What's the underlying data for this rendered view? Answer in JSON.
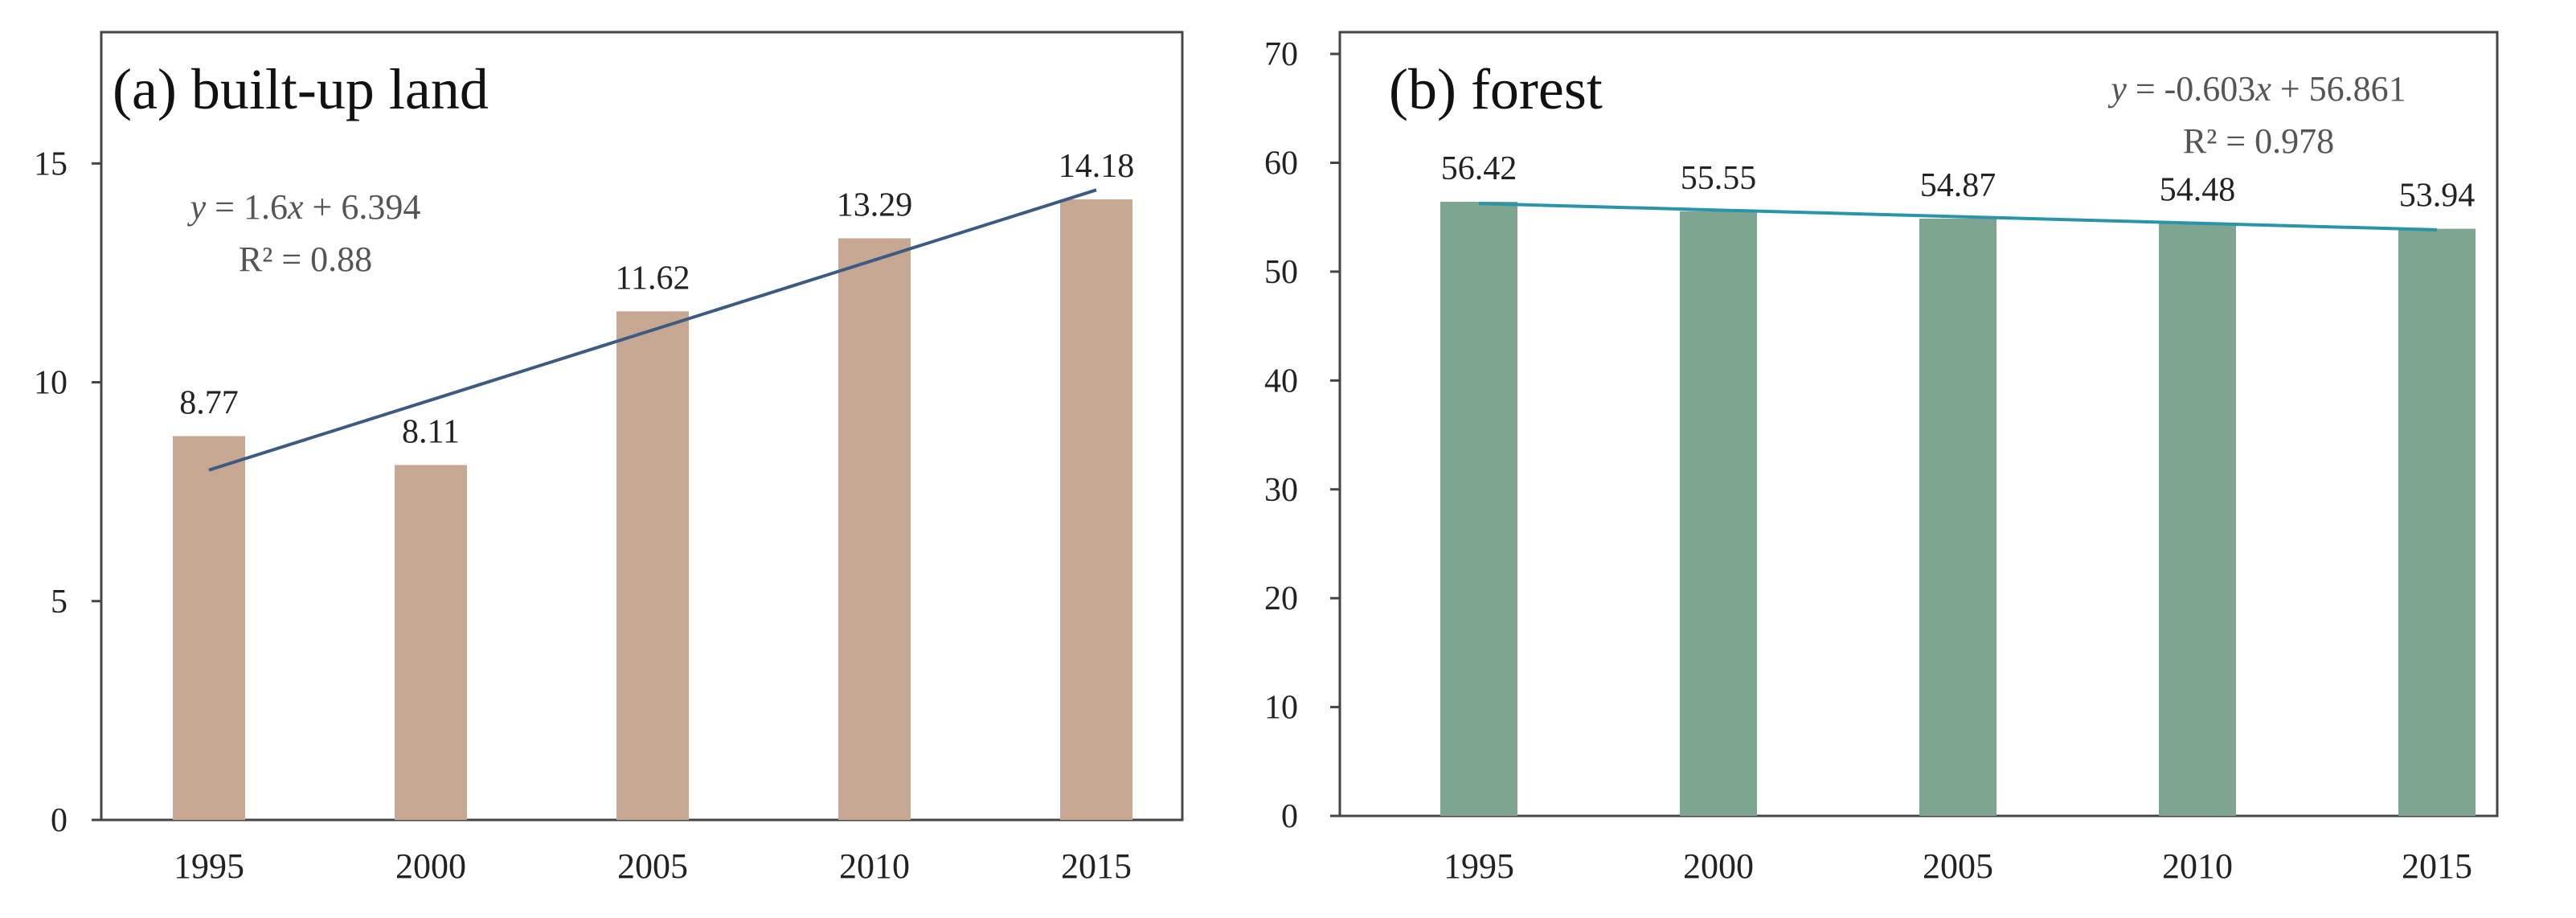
{
  "chart_data": [
    {
      "type": "bar",
      "title": "(a) built-up land",
      "categories": [
        "1995",
        "2000",
        "2005",
        "2010",
        "2015"
      ],
      "values": [
        8.77,
        8.11,
        11.62,
        13.29,
        14.18
      ],
      "value_labels": [
        "8.77",
        "8.11",
        "11.62",
        "13.29",
        "14.18"
      ],
      "ylim": [
        0,
        18
      ],
      "yticks": [
        0,
        5,
        10,
        15
      ],
      "ytick_labels": [
        "0",
        "5",
        "10",
        "15"
      ],
      "xlabel": "",
      "ylabel": "",
      "bar_color": "#c6a892",
      "trendline": {
        "color": "#3d5a80",
        "start": [
          1,
          7.994
        ],
        "end": [
          5,
          14.394
        ],
        "equation_parts": [
          "y",
          " = 1.6",
          "x",
          " + 6.394"
        ],
        "r2_text": "R² = 0.88"
      }
    },
    {
      "type": "bar",
      "title": "(b) forest",
      "categories": [
        "1995",
        "2000",
        "2005",
        "2010",
        "2015"
      ],
      "values": [
        56.42,
        55.55,
        54.87,
        54.48,
        53.94
      ],
      "value_labels": [
        "56.42",
        "55.55",
        "54.87",
        "54.48",
        "53.94"
      ],
      "ylim": [
        0,
        72
      ],
      "yticks": [
        0,
        10,
        20,
        30,
        40,
        50,
        60,
        70
      ],
      "ytick_labels": [
        "0",
        "10",
        "20",
        "30",
        "40",
        "50",
        "60",
        "70"
      ],
      "xlabel": "",
      "ylabel": "",
      "bar_color": "#7ea590",
      "trendline": {
        "color": "#2a94a8",
        "start": [
          1,
          56.258
        ],
        "end": [
          5,
          53.846
        ],
        "equation_parts": [
          "y",
          " = -0.603",
          "x",
          " + 56.861"
        ],
        "r2_text": "R² = 0.978"
      }
    }
  ]
}
